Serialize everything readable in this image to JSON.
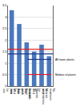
{
  "chart_data": {
    "type": "bar",
    "categories": [
      "Bad wind data for use",
      "Bad wind data for view",
      "Nearest fixed point",
      "Nearest wind available",
      "Nearest wind for all",
      "No treatment of uncertainties"
    ],
    "values": [
      3.3,
      2.7,
      1.9,
      1.5,
      1.8,
      1.3
    ],
    "color": "#4a78bd",
    "reference_lines": [
      {
        "name": "All tower plants",
        "value": 1.4,
        "color": "#1f3a8a"
      },
      {
        "name": "Median of plants",
        "value": 1.6,
        "color": "#e02020"
      }
    ],
    "ylim": [
      0,
      3.5
    ],
    "yticks": [
      0,
      0.5,
      1,
      1.5,
      2,
      2.5,
      3,
      3.5
    ],
    "grid": true,
    "legend": "lower right"
  }
}
